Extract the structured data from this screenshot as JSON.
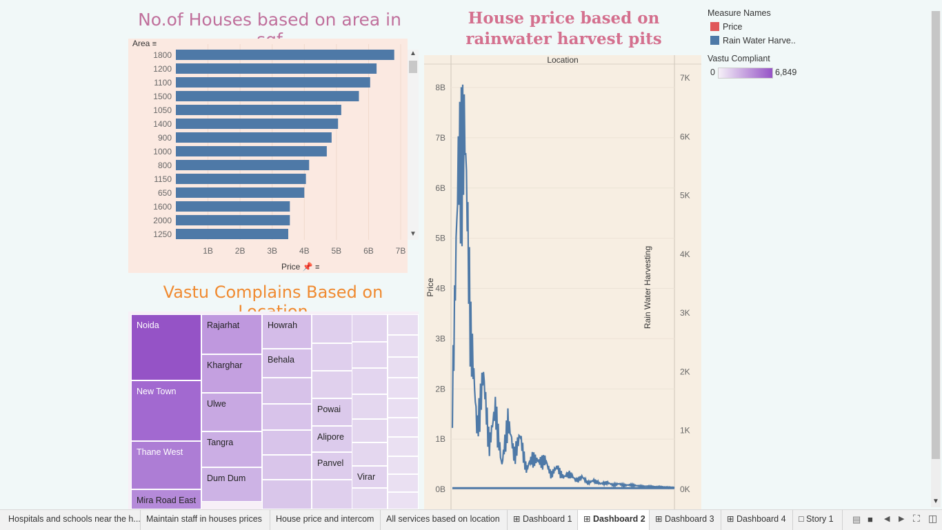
{
  "titles": {
    "area_chart": "No.of Houses based on area in sqf",
    "price_chart": "House price based on rainwater harvest pits",
    "treemap": "Vastu Complains Based on Location"
  },
  "bar_panel": {
    "y_header": "Area",
    "x_header": "Price"
  },
  "line_panel": {
    "top_header": "Location",
    "left_axis": "Price",
    "right_axis": "Rain Water Harvesting"
  },
  "legend": {
    "measure_title": "Measure Names",
    "measures": [
      {
        "label": "Price",
        "color": "#e05759"
      },
      {
        "label": "Rain Water Harve..",
        "color": "#4e79a7"
      }
    ],
    "vastu_title": "Vastu Compliant",
    "vastu_min": "0",
    "vastu_max": "6,849"
  },
  "chart_data": [
    {
      "type": "bar",
      "title": "No.of Houses based on area in sqf",
      "ylabel": "Area",
      "xlabel": "Price",
      "categories": [
        "1800",
        "1200",
        "1100",
        "1500",
        "1050",
        "1400",
        "900",
        "1000",
        "800",
        "1150",
        "650",
        "1600",
        "2000",
        "1250"
      ],
      "values": [
        6.8,
        6.25,
        6.05,
        5.7,
        5.15,
        5.05,
        4.85,
        4.7,
        4.15,
        4.05,
        4.0,
        3.55,
        3.55,
        3.5
      ],
      "xticks": [
        "1B",
        "2B",
        "3B",
        "4B",
        "5B",
        "6B",
        "7B"
      ],
      "xlim": [
        0,
        7.0
      ],
      "color": "#4e79a7"
    },
    {
      "type": "line",
      "title": "House price based on rainwater harvest pits",
      "xlabel": "Location",
      "ylabel": "Price",
      "y2label": "Rain Water Harvesting",
      "yticks": [
        "0B",
        "1B",
        "2B",
        "3B",
        "4B",
        "5B",
        "6B",
        "7B",
        "8B"
      ],
      "y2ticks": [
        "0K",
        "1K",
        "2K",
        "3K",
        "4K",
        "5K",
        "6K",
        "7K"
      ],
      "ylim": [
        0,
        8.0
      ],
      "y2lim": [
        0,
        7000
      ],
      "series": [
        {
          "name": "Rain Water Harve..",
          "color": "#4e79a7",
          "values": [
            1900,
            6600,
            7150,
            3200,
            1200,
            2300,
            900,
            1650,
            450,
            1400,
            700,
            1080,
            400,
            650,
            550,
            600,
            300,
            450,
            240,
            320,
            180,
            250,
            130,
            180,
            110,
            140,
            90,
            110,
            80,
            90,
            70,
            60,
            60,
            50,
            50,
            40,
            40
          ]
        }
      ]
    }
  ],
  "treemap": {
    "cells": [
      {
        "label": "Noida",
        "color": "#9553c6",
        "text": "#ffffff"
      },
      {
        "label": "New Town",
        "color": "#a269d0",
        "text": "#ffffff"
      },
      {
        "label": "Thane West",
        "color": "#ad7dd5",
        "text": "#ffffff"
      },
      {
        "label": "Mira Road East",
        "color": "#b58ad9",
        "text": "#222222"
      },
      {
        "label": "Rajarhat",
        "color": "#bf98de",
        "text": "#222222"
      },
      {
        "label": "Kharghar",
        "color": "#c4a0e0",
        "text": "#222222"
      },
      {
        "label": "Ulwe",
        "color": "#c8a8e2",
        "text": "#222222"
      },
      {
        "label": "Tangra",
        "color": "#cbaee4",
        "text": "#222222"
      },
      {
        "label": "Dum Dum",
        "color": "#cdb3e5",
        "text": "#222222"
      },
      {
        "label": "Howrah",
        "color": "#d4bce8",
        "text": "#222222"
      },
      {
        "label": "Behala",
        "color": "#d6c0e9",
        "text": "#222222"
      },
      {
        "label": "Powai",
        "color": "#dbc9eb",
        "text": "#222222"
      },
      {
        "label": "Alipore",
        "color": "#dccbec",
        "text": "#222222"
      },
      {
        "label": "Panvel",
        "color": "#ddccec",
        "text": "#222222"
      },
      {
        "label": "Virar",
        "color": "#e1d2ee",
        "text": "#222222"
      }
    ]
  },
  "tabs": [
    {
      "label": "Hospitals and schools near the h..."
    },
    {
      "label": "Maintain staff in houses prices"
    },
    {
      "label": "House price and intercom"
    },
    {
      "label": "All services based on location"
    },
    {
      "label": "Dashboard 1"
    },
    {
      "label": "Dashboard 2"
    },
    {
      "label": "Dashboard 3"
    },
    {
      "label": "Dashboard 4"
    },
    {
      "label": "Story 1"
    }
  ]
}
